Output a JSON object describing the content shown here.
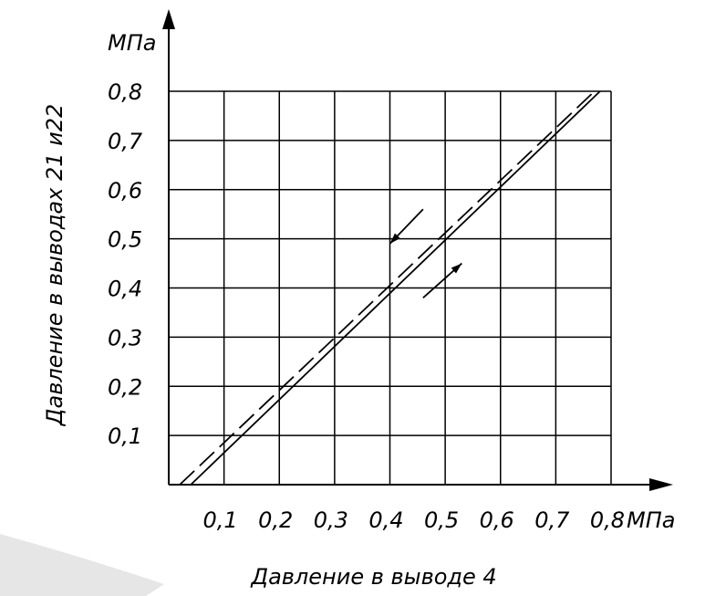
{
  "chart_data": {
    "type": "line",
    "x_unit": "МПа",
    "y_unit": "МПа",
    "xlabel": "Давление в выводе 4",
    "ylabel": "Давление в выводах 21 и22",
    "x_ticks": [
      "0,1",
      "0,2",
      "0,3",
      "0,4",
      "0,5",
      "0,6",
      "0,7",
      "0,8"
    ],
    "y_ticks": [
      "0,1",
      "0,2",
      "0,3",
      "0,4",
      "0,5",
      "0,6",
      "0,7",
      "0,8"
    ],
    "xlim": [
      0,
      0.8
    ],
    "ylim": [
      0,
      0.8
    ],
    "grid": true,
    "series": [
      {
        "style": "solid",
        "x": [
          0.04,
          0.78
        ],
        "y": [
          0,
          0.8
        ]
      },
      {
        "style": "dashed",
        "x": [
          0.02,
          0.77
        ],
        "y": [
          0,
          0.8
        ]
      }
    ],
    "annotations": [
      {
        "kind": "arrow",
        "direction": "down-left",
        "from": [
          0.46,
          0.56
        ],
        "to": [
          0.4,
          0.49
        ]
      },
      {
        "kind": "arrow",
        "direction": "up-right",
        "from": [
          0.46,
          0.38
        ],
        "to": [
          0.53,
          0.45
        ]
      }
    ]
  },
  "colors": {
    "ink": "#000000",
    "background": "#ffffff",
    "shadow": "#cfcfcf"
  }
}
